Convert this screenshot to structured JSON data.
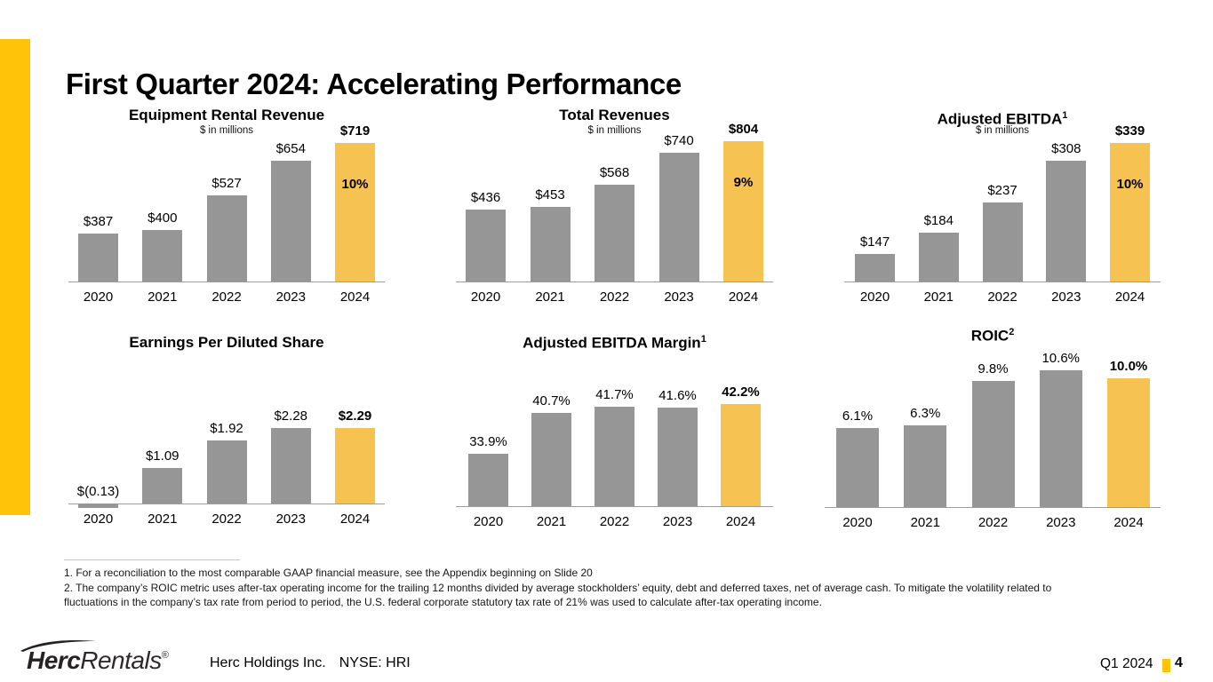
{
  "slide": {
    "title": "First Quarter 2024: Accelerating Performance"
  },
  "colors": {
    "accent_yellow": "#FFC40A",
    "highlight_bar_yellow": "#F6C252",
    "bar_gray": "#969696",
    "axis_gray": "#9d9d9d"
  },
  "chart_data": [
    {
      "id": "equipment-rental-revenue",
      "type": "bar",
      "title": "Equipment Rental Revenue",
      "title_sup": "",
      "subtitle": "$ in millions",
      "categories": [
        "2020",
        "2021",
        "2022",
        "2023",
        "2024"
      ],
      "values": [
        387,
        400,
        527,
        654,
        719
      ],
      "labels": [
        "$387",
        "$400",
        "$527",
        "$654",
        "$719"
      ],
      "growth_label": "10%",
      "highlight_category": "2024",
      "ylim": [
        210,
        719
      ],
      "grid": false,
      "legend": false
    },
    {
      "id": "total-revenues",
      "type": "bar",
      "title": "Total Revenues",
      "title_sup": "",
      "subtitle": "$ in millions",
      "categories": [
        "2020",
        "2021",
        "2022",
        "2023",
        "2024"
      ],
      "values": [
        436,
        453,
        568,
        740,
        804
      ],
      "labels": [
        "$436",
        "$453",
        "$568",
        "$740",
        "$804"
      ],
      "growth_label": "9%",
      "highlight_category": "2024",
      "ylim": [
        50,
        804
      ],
      "grid": false,
      "legend": false
    },
    {
      "id": "adjusted-ebitda",
      "type": "bar",
      "title": "Adjusted EBITDA",
      "title_sup": "1",
      "subtitle": "$ in millions",
      "categories": [
        "2020",
        "2021",
        "2022",
        "2023",
        "2024"
      ],
      "values": [
        147,
        184,
        237,
        308,
        339
      ],
      "labels": [
        "$147",
        "$184",
        "$237",
        "$308",
        "$339"
      ],
      "growth_label": "10%",
      "highlight_category": "2024",
      "ylim": [
        100,
        339
      ],
      "grid": false,
      "legend": false
    },
    {
      "id": "earnings-per-diluted-share",
      "type": "bar",
      "title": "Earnings Per Diluted Share",
      "title_sup": "",
      "subtitle": "",
      "categories": [
        "2020",
        "2021",
        "2022",
        "2023",
        "2024"
      ],
      "values": [
        -0.13,
        1.09,
        1.92,
        2.28,
        2.29
      ],
      "labels": [
        "$(0.13)",
        "$1.09",
        "$1.92",
        "$2.28",
        "$2.29"
      ],
      "growth_label": "",
      "highlight_category": "2024",
      "ylim": [
        0,
        2.29
      ],
      "grid": false,
      "legend": false
    },
    {
      "id": "adjusted-ebitda-margin",
      "type": "bar",
      "title": "Adjusted EBITDA Margin",
      "title_sup": "1",
      "subtitle": "",
      "categories": [
        "2020",
        "2021",
        "2022",
        "2023",
        "2024"
      ],
      "values": [
        33.9,
        40.7,
        41.7,
        41.6,
        42.2
      ],
      "labels": [
        "33.9%",
        "40.7%",
        "41.7%",
        "41.6%",
        "42.2%"
      ],
      "growth_label": "",
      "highlight_category": "2024",
      "ylim": [
        25.2,
        42.2
      ],
      "grid": false,
      "legend": false
    },
    {
      "id": "roic",
      "type": "bar",
      "title": "ROIC",
      "title_sup": "2",
      "subtitle": "",
      "categories": [
        "2020",
        "2021",
        "2022",
        "2023",
        "2024"
      ],
      "values": [
        6.1,
        6.3,
        9.8,
        10.6,
        10.0
      ],
      "labels": [
        "6.1%",
        "6.3%",
        "9.8%",
        "10.6%",
        "10.0%"
      ],
      "growth_label": "",
      "highlight_category": "2024",
      "ylim": [
        0,
        10.6
      ],
      "grid": false,
      "legend": false
    }
  ],
  "footnotes": [
    "1. For a reconciliation to the most comparable GAAP financial measure, see the Appendix beginning on Slide 20",
    "2. The company’s ROIC metric uses after-tax operating income for the trailing 12 months divided by average stockholders’ equity, debt and deferred taxes, net of average cash. To mitigate the volatility related to fluctuations in the company’s tax rate from period to period, the U.S. federal corporate statutory tax rate of 21% was used to calculate after-tax operating income."
  ],
  "footer": {
    "logo_primary": "Herc",
    "logo_secondary": "Rentals",
    "registered_mark": "®",
    "company": "Herc Holdings Inc.",
    "ticker": "NYSE: HRI",
    "period": "Q1 2024",
    "page_number": "4"
  }
}
